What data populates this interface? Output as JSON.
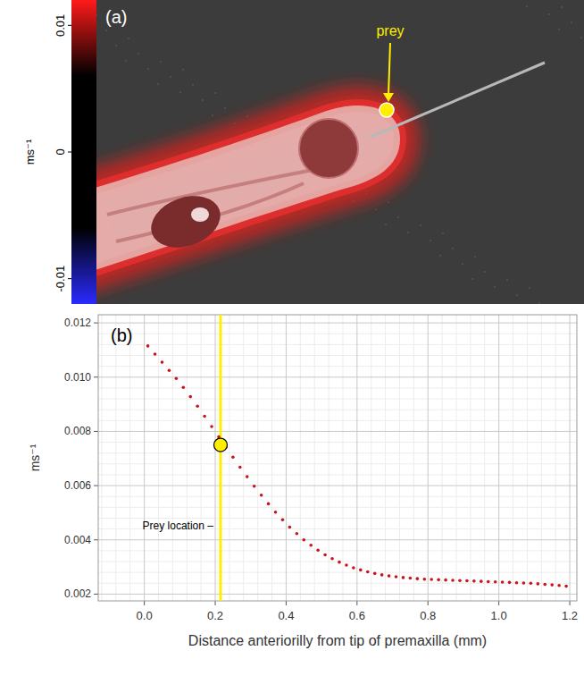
{
  "chart_data": [
    {
      "type": "image",
      "panel_label": "(a)",
      "annotation": "prey",
      "colorbar": {
        "label": "ms⁻¹",
        "range": [
          -0.012,
          0.012
        ],
        "ticks": [
          -0.01,
          0,
          0.01
        ],
        "colors": [
          "#2a2aff",
          "#000000",
          "#ff1a1a"
        ]
      }
    },
    {
      "type": "scatter",
      "panel_label": "(b)",
      "x_label": "Distance anteriorilly from tip of premaxilla (mm)",
      "y_label": "ms⁻¹",
      "xlim": [
        -0.13,
        1.22
      ],
      "ylim": [
        0.00175,
        0.0123
      ],
      "xticks": [
        {
          "value": 0,
          "label": "0.0"
        },
        0.2,
        0.4,
        0.6,
        0.8,
        {
          "value": 1,
          "label": "1.0"
        },
        1.2
      ],
      "yticks": [
        0.002,
        0.004,
        0.006,
        0.008,
        {
          "value": 0.01,
          "label": "0.010"
        },
        0.012
      ],
      "grid": true,
      "marker": "dot",
      "line_style": "none",
      "color": "#c8141a",
      "x": [
        0.01,
        0.03,
        0.05,
        0.07,
        0.09,
        0.11,
        0.13,
        0.15,
        0.17,
        0.19,
        0.21,
        0.23,
        0.25,
        0.27,
        0.29,
        0.31,
        0.33,
        0.35,
        0.37,
        0.39,
        0.41,
        0.43,
        0.45,
        0.47,
        0.49,
        0.51,
        0.53,
        0.55,
        0.57,
        0.59,
        0.61,
        0.63,
        0.65,
        0.67,
        0.69,
        0.71,
        0.73,
        0.75,
        0.77,
        0.79,
        0.81,
        0.83,
        0.85,
        0.87,
        0.89,
        0.91,
        0.93,
        0.95,
        0.97,
        0.99,
        1.01,
        1.03,
        1.05,
        1.07,
        1.09,
        1.11,
        1.13,
        1.15,
        1.17,
        1.19
      ],
      "values": [
        0.01115,
        0.01085,
        0.01055,
        0.01025,
        0.00995,
        0.00962,
        0.00928,
        0.00893,
        0.00856,
        0.00818,
        0.0078,
        0.00742,
        0.00705,
        0.00668,
        0.00633,
        0.00598,
        0.00565,
        0.00533,
        0.00502,
        0.00474,
        0.00447,
        0.00423,
        0.004,
        0.0038,
        0.00362,
        0.00345,
        0.00331,
        0.00318,
        0.00307,
        0.00297,
        0.00289,
        0.00282,
        0.00276,
        0.00271,
        0.00267,
        0.00264,
        0.00261,
        0.00259,
        0.00257,
        0.00255,
        0.00254,
        0.00253,
        0.00252,
        0.00251,
        0.0025,
        0.00249,
        0.00248,
        0.00247,
        0.00246,
        0.00245,
        0.00244,
        0.00243,
        0.00242,
        0.00241,
        0.0024,
        0.00238,
        0.00236,
        0.00234,
        0.00232,
        0.00229
      ],
      "annotations": [
        {
          "text": "Prey location –",
          "x": 0.215,
          "y": 0.0075,
          "color": "#ffee00"
        }
      ]
    }
  ]
}
